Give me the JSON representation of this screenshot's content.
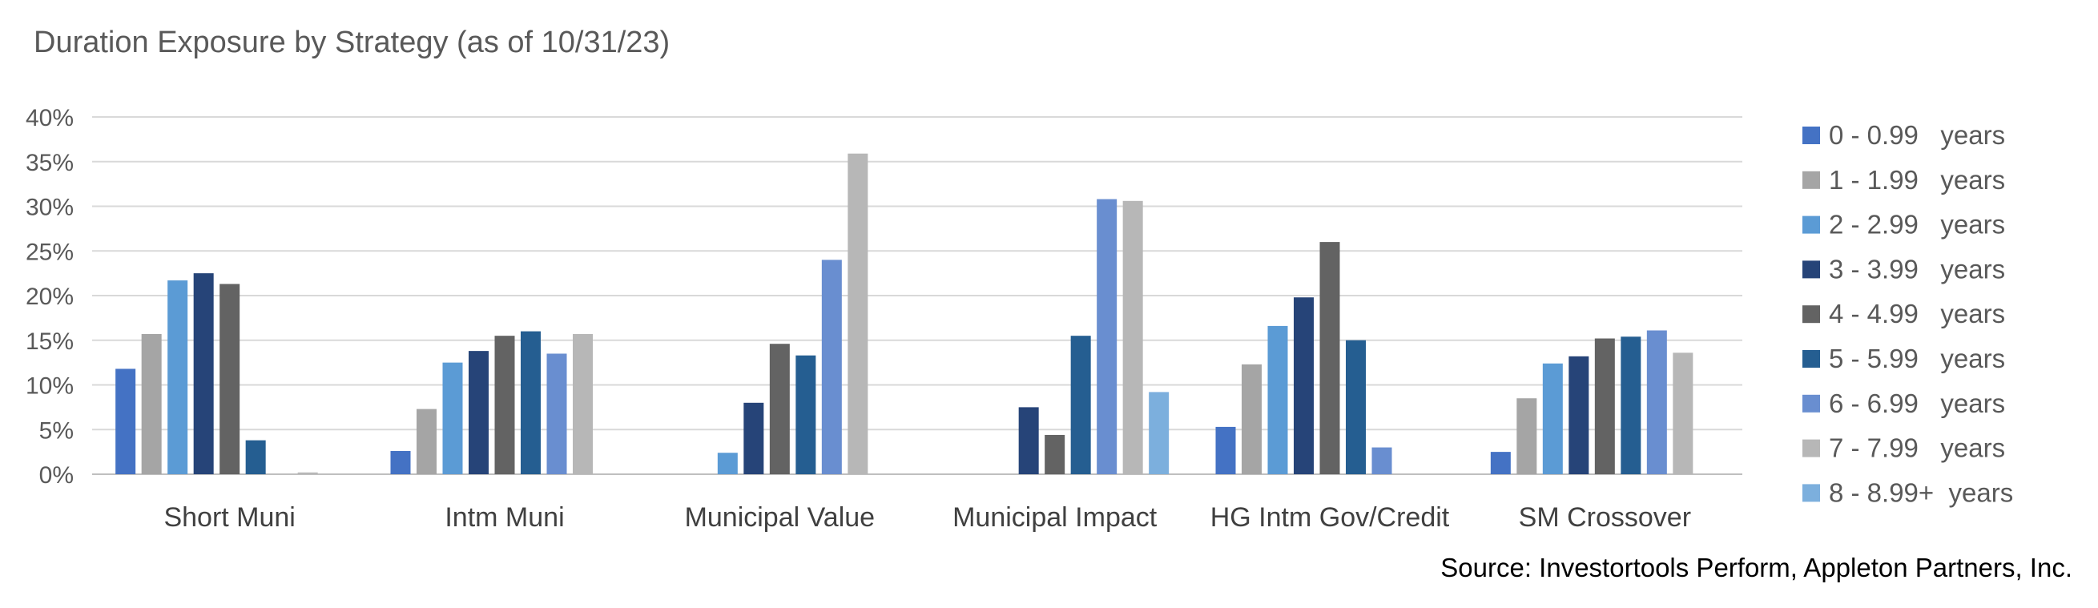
{
  "chart_data": {
    "type": "bar",
    "title": "Duration Exposure by Strategy (as of 10/31/23)",
    "source": "Source:  Investortools Perform, Appleton Partners, Inc.",
    "categories": [
      "Short Muni",
      "Intm Muni",
      "Municipal Value",
      "Municipal Impact",
      "HG Intm Gov/Credit",
      "SM Crossover"
    ],
    "ylim": [
      0,
      40
    ],
    "yticks": [
      "0%",
      "5%",
      "10%",
      "15%",
      "20%",
      "25%",
      "30%",
      "35%",
      "40%"
    ],
    "ytick_values": [
      0,
      5,
      10,
      15,
      20,
      25,
      30,
      35,
      40
    ],
    "grid": true,
    "legend_position": "right",
    "series": [
      {
        "name": "0 - 0.99   years",
        "color": "#4472C4",
        "values": [
          11.8,
          2.6,
          0,
          0,
          5.3,
          2.5
        ]
      },
      {
        "name": "1 - 1.99   years",
        "color": "#A5A5A5",
        "values": [
          15.7,
          7.3,
          0,
          0,
          12.3,
          8.5
        ]
      },
      {
        "name": "2 - 2.99   years",
        "color": "#5B9BD5",
        "values": [
          21.7,
          12.5,
          2.4,
          0,
          16.6,
          12.4
        ]
      },
      {
        "name": "3 - 3.99   years",
        "color": "#264478",
        "values": [
          22.5,
          13.8,
          8.0,
          7.5,
          19.8,
          13.2
        ]
      },
      {
        "name": "4 - 4.99   years",
        "color": "#636363",
        "values": [
          21.3,
          15.5,
          14.6,
          4.4,
          26.0,
          15.2
        ]
      },
      {
        "name": "5 - 5.99   years",
        "color": "#255E91",
        "values": [
          3.8,
          16.0,
          13.3,
          15.5,
          15.0,
          15.4
        ]
      },
      {
        "name": "6 - 6.99   years",
        "color": "#698ED0",
        "values": [
          0,
          13.5,
          24.0,
          30.8,
          3.0,
          16.1
        ]
      },
      {
        "name": "7 - 7.99   years",
        "color": "#B7B7B7",
        "values": [
          0.2,
          15.7,
          35.9,
          30.6,
          0,
          13.6
        ]
      },
      {
        "name": "8 - 8.99+  years",
        "color": "#7CAFDD",
        "values": [
          0,
          0,
          0,
          9.2,
          0,
          0
        ]
      }
    ]
  }
}
